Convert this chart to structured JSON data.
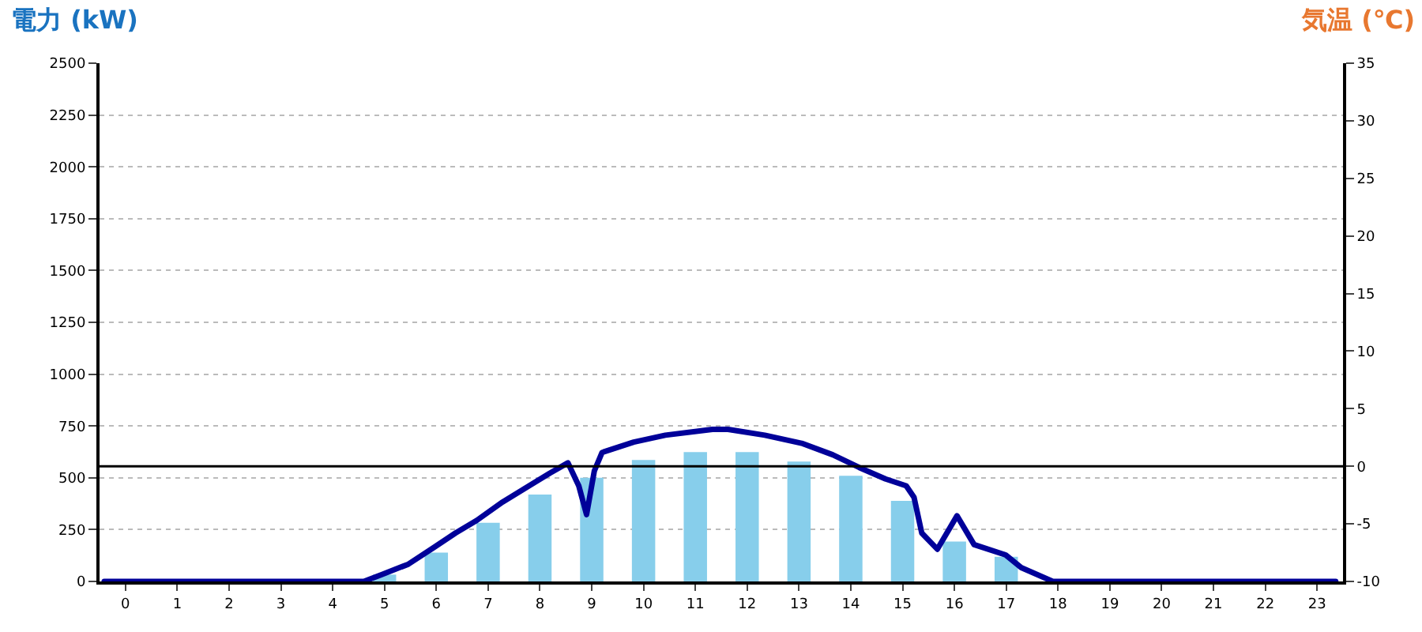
{
  "chart_data": {
    "type": "bar",
    "ylabel": "電力 (kW)",
    "y2label": "気温 (℃)",
    "x": [
      0,
      1,
      2,
      3,
      4,
      5,
      6,
      7,
      8,
      9,
      10,
      11,
      12,
      13,
      14,
      15,
      16,
      17,
      18,
      19,
      20,
      21,
      22,
      23
    ],
    "xlim": [
      -0.5,
      23.5
    ],
    "xticks": [
      0,
      1,
      2,
      3,
      4,
      5,
      6,
      7,
      8,
      9,
      10,
      11,
      12,
      13,
      14,
      15,
      16,
      17,
      18,
      19,
      20,
      21,
      22,
      23
    ],
    "ylim": [
      0,
      2500
    ],
    "yticks": [
      0,
      250,
      500,
      750,
      1000,
      1250,
      1500,
      1750,
      2000,
      2250,
      2500
    ],
    "y2lim": [
      -10,
      35
    ],
    "y2ticks": [
      -10,
      -5,
      0,
      5,
      10,
      15,
      20,
      25,
      30,
      35
    ],
    "grid": "y",
    "series": [
      {
        "color": "#87ceeb",
        "values": [
          0,
          0,
          0,
          0,
          0,
          33,
          139,
          283,
          419,
          500,
          586,
          624,
          624,
          578,
          510,
          389,
          192,
          119,
          0,
          0,
          0,
          0,
          0,
          0
        ]
      },
      {
        "type": "line",
        "axis": "y2",
        "color": "#000099",
        "line_style": "solid",
        "marker": "none",
        "x": [
          -0.41,
          4.6,
          4.95,
          5.46,
          5.97,
          6.37,
          6.78,
          7.28,
          7.79,
          8.19,
          8.54,
          8.75,
          8.9,
          9.05,
          9.2,
          9.4,
          9.81,
          10.42,
          11.33,
          11.63,
          12.34,
          13.05,
          13.65,
          14.16,
          14.67,
          15.07,
          15.22,
          15.37,
          15.67,
          16.05,
          16.38,
          16.99,
          17.29,
          17.9,
          23.36
        ],
        "values": [
          -10,
          -10,
          -9.4,
          -8.5,
          -7.0,
          -5.8,
          -4.7,
          -3.1,
          -1.7,
          -0.6,
          0.3,
          -1.7,
          -4.2,
          -0.4,
          1.2,
          1.5,
          2.1,
          2.7,
          3.2,
          3.2,
          2.7,
          2.0,
          1.0,
          -0.1,
          -1.1,
          -1.7,
          -2.7,
          -5.8,
          -7.2,
          -4.3,
          -6.8,
          -7.7,
          -8.8,
          -10,
          -10
        ]
      }
    ],
    "ref_lines": [
      {
        "axis": "y2",
        "value": 0,
        "color": "#000000"
      }
    ]
  }
}
